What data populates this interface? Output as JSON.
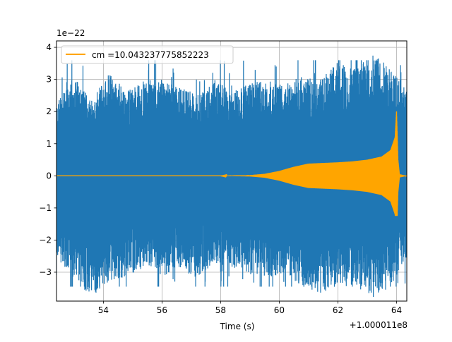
{
  "chart_data": {
    "type": "line",
    "title": "",
    "xlabel": "Time (s)",
    "ylabel": "",
    "x_offset_label": "+1.000011e8",
    "y_scale_label": "1e−22",
    "xlim": [
      52.4,
      64.35
    ],
    "ylim": [
      -3.9,
      4.2
    ],
    "grid": true,
    "legend_position": "top-left",
    "x_ticks": [
      {
        "value": 54,
        "label": "54"
      },
      {
        "value": 56,
        "label": "56"
      },
      {
        "value": 58,
        "label": "58"
      },
      {
        "value": 60,
        "label": "60"
      },
      {
        "value": 62,
        "label": "62"
      },
      {
        "value": 64,
        "label": "64"
      }
    ],
    "y_ticks": [
      {
        "value": -3,
        "label": "−3"
      },
      {
        "value": -2,
        "label": "−2"
      },
      {
        "value": -1,
        "label": "−1"
      },
      {
        "value": 0,
        "label": "0"
      },
      {
        "value": 1,
        "label": "1"
      },
      {
        "value": 2,
        "label": "2"
      },
      {
        "value": 3,
        "label": "3"
      },
      {
        "value": 4,
        "label": "4"
      }
    ],
    "series": [
      {
        "name": "",
        "color": "#1f77b4",
        "kind": "noise-envelope",
        "x": [
          52.4,
          53.0,
          53.6,
          54.2,
          54.8,
          55.4,
          56.0,
          56.6,
          57.2,
          57.8,
          58.4,
          59.0,
          59.6,
          60.2,
          60.8,
          61.4,
          62.0,
          62.6,
          63.2,
          63.8,
          64.35
        ],
        "upper": [
          2.0,
          2.7,
          2.1,
          2.8,
          2.3,
          2.6,
          2.6,
          2.4,
          2.2,
          2.6,
          2.3,
          2.5,
          2.6,
          2.5,
          2.7,
          2.6,
          3.1,
          2.9,
          3.4,
          2.9,
          2.4
        ],
        "lower": [
          -2.2,
          -2.8,
          -3.3,
          -2.9,
          -2.7,
          -2.5,
          -2.5,
          -2.5,
          -2.8,
          -2.4,
          -2.5,
          -2.7,
          -2.8,
          -2.7,
          -3.0,
          -3.2,
          -3.0,
          -3.0,
          -3.3,
          -3.0,
          -2.2
        ],
        "spike_max": 3.6,
        "spike_min": -3.45
      },
      {
        "name": "cm =10.043237775852223",
        "color": "#ffa500",
        "kind": "chirp-envelope",
        "x": [
          52.4,
          58.0,
          59.0,
          59.5,
          60.0,
          60.5,
          61.0,
          61.5,
          62.0,
          62.5,
          63.0,
          63.5,
          63.8,
          63.95,
          64.0,
          64.05,
          64.1,
          64.35
        ],
        "amplitude": [
          0.0,
          0.0,
          0.02,
          0.06,
          0.15,
          0.28,
          0.38,
          0.4,
          0.42,
          0.45,
          0.5,
          0.6,
          0.8,
          1.2,
          2.05,
          0.5,
          0.05,
          0.0
        ],
        "lower_peak": -1.25
      }
    ]
  }
}
